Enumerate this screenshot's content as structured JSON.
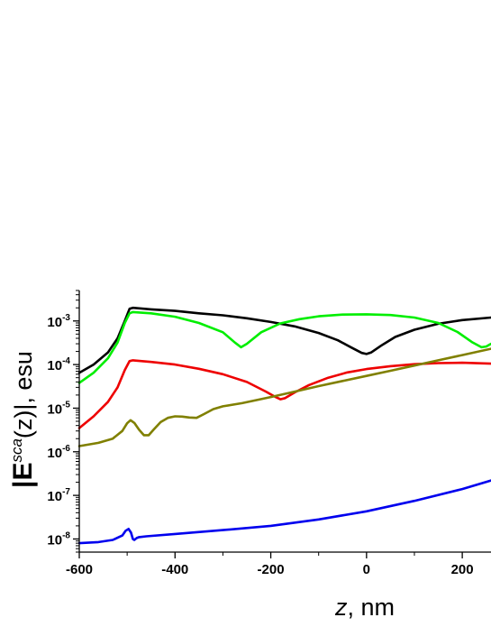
{
  "chart_data": {
    "type": "line",
    "xlabel_var": "z",
    "xlabel_unit": ", nm",
    "ylabel": {
      "prefix": "|E",
      "superscript": "sca",
      "argument": "(z)|",
      "unit": ", esu"
    },
    "y_scale": "log",
    "xlim": [
      -600,
      260
    ],
    "ylim": [
      5e-09,
      0.005
    ],
    "x_ticks": [
      -600,
      -400,
      -200,
      0,
      200
    ],
    "y_ticks": [
      {
        "base": "10",
        "exp": "-3",
        "value": 0.001
      },
      {
        "base": "10",
        "exp": "-4",
        "value": 0.0001
      },
      {
        "base": "10",
        "exp": "-5",
        "value": 1e-05
      },
      {
        "base": "10",
        "exp": "-6",
        "value": 1e-06
      },
      {
        "base": "10",
        "exp": "-7",
        "value": 1e-07
      },
      {
        "base": "10",
        "exp": "-8",
        "value": 1e-08
      }
    ],
    "grid": false,
    "series": [
      {
        "color": "#000000",
        "x": [
          -600,
          -570,
          -540,
          -520,
          -505,
          -495,
          -488,
          -450,
          -400,
          -350,
          -300,
          -250,
          -200,
          -150,
          -100,
          -60,
          -30,
          -10,
          0,
          10,
          30,
          60,
          100,
          150,
          200,
          260
        ],
        "y": [
          6.5e-05,
          0.0001,
          0.00019,
          0.0004,
          0.001,
          0.0019,
          0.002,
          0.00185,
          0.0017,
          0.0015,
          0.00135,
          0.00115,
          0.00095,
          0.00075,
          0.00053,
          0.00036,
          0.00024,
          0.000185,
          0.000175,
          0.00019,
          0.00027,
          0.00043,
          0.00063,
          0.00086,
          0.00105,
          0.0012
        ]
      },
      {
        "color": "#00ee00",
        "x": [
          -600,
          -570,
          -540,
          -520,
          -505,
          -495,
          -488,
          -450,
          -400,
          -350,
          -300,
          -275,
          -262,
          -250,
          -220,
          -180,
          -140,
          -100,
          -50,
          0,
          50,
          100,
          150,
          190,
          220,
          240,
          250,
          260
        ],
        "y": [
          3.8e-05,
          6.5e-05,
          0.00014,
          0.00032,
          0.0009,
          0.0015,
          0.0016,
          0.0015,
          0.00125,
          0.0009,
          0.00055,
          0.00032,
          0.00025,
          0.0003,
          0.00055,
          0.00088,
          0.0011,
          0.00128,
          0.0014,
          0.00142,
          0.00137,
          0.0012,
          0.0009,
          0.00056,
          0.00033,
          0.00025,
          0.00026,
          0.0003
        ]
      },
      {
        "color": "#ee0000",
        "x": [
          -600,
          -570,
          -540,
          -520,
          -505,
          -495,
          -488,
          -450,
          -400,
          -350,
          -300,
          -250,
          -210,
          -190,
          -180,
          -170,
          -150,
          -120,
          -80,
          -40,
          0,
          50,
          100,
          150,
          200,
          260
        ],
        "y": [
          3.5e-06,
          6.5e-06,
          1.4e-05,
          3e-05,
          7.5e-05,
          0.00012,
          0.000125,
          0.000115,
          0.0001,
          8e-05,
          6e-05,
          4e-05,
          2.4e-05,
          1.8e-05,
          1.6e-05,
          1.7e-05,
          2.3e-05,
          3.4e-05,
          5e-05,
          6.6e-05,
          7.9e-05,
          9.2e-05,
          0.000102,
          0.000108,
          0.00011,
          0.000105
        ]
      },
      {
        "color": "#808000",
        "x": [
          -600,
          -560,
          -530,
          -510,
          -500,
          -493,
          -485,
          -475,
          -465,
          -455,
          -445,
          -430,
          -415,
          -400,
          -385,
          -370,
          -355,
          -340,
          -320,
          -300,
          -260,
          -200,
          -150,
          -100,
          -50,
          0,
          50,
          100,
          150,
          200,
          260
        ],
        "y": [
          1.35e-06,
          1.6e-06,
          2e-06,
          3e-06,
          4.5e-06,
          5.3e-06,
          4.6e-06,
          3.2e-06,
          2.4e-06,
          2.4e-06,
          3.2e-06,
          4.8e-06,
          6e-06,
          6.5e-06,
          6.4e-06,
          6.1e-06,
          6e-06,
          7.3e-06,
          9.5e-06,
          1.1e-05,
          1.3e-05,
          1.8e-05,
          2.4e-05,
          3.2e-05,
          4.2e-05,
          5.5e-05,
          7.2e-05,
          9.5e-05,
          0.000125,
          0.000165,
          0.00023
        ]
      },
      {
        "color": "#0000ee",
        "x": [
          -600,
          -560,
          -530,
          -510,
          -503,
          -497,
          -492,
          -488,
          -485,
          -480,
          -475,
          -460,
          -400,
          -300,
          -200,
          -100,
          0,
          100,
          200,
          260
        ],
        "y": [
          8e-09,
          8.5e-09,
          9.5e-09,
          1.2e-08,
          1.55e-08,
          1.7e-08,
          1.4e-08,
          1e-08,
          9.5e-09,
          1.05e-08,
          1.1e-08,
          1.15e-08,
          1.3e-08,
          1.6e-08,
          2e-08,
          2.8e-08,
          4.3e-08,
          7.5e-08,
          1.4e-07,
          2.2e-07
        ]
      }
    ]
  }
}
